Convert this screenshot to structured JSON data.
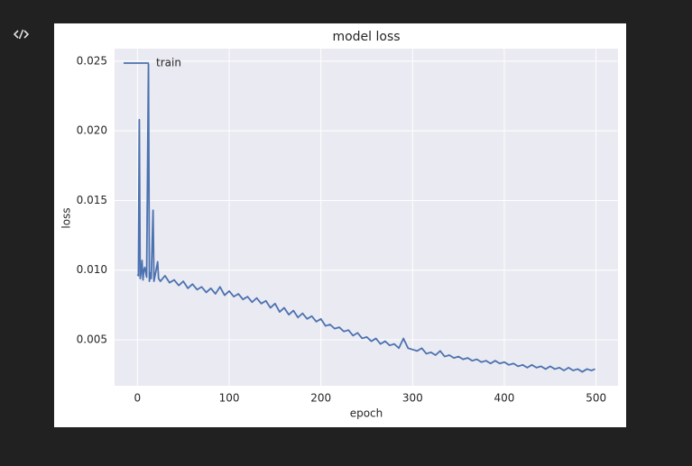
{
  "chart_data": {
    "type": "line",
    "title": "model loss",
    "x_label": "epoch",
    "y_label": "loss",
    "x": [
      0,
      1,
      2,
      3,
      4,
      5,
      6,
      7,
      8,
      10,
      12,
      13,
      14,
      15,
      17,
      18,
      20,
      22,
      23,
      25,
      30,
      35,
      40,
      45,
      50,
      55,
      60,
      65,
      70,
      75,
      80,
      85,
      90,
      95,
      100,
      105,
      110,
      115,
      120,
      125,
      130,
      135,
      140,
      145,
      150,
      155,
      160,
      165,
      170,
      175,
      180,
      185,
      190,
      195,
      200,
      205,
      210,
      215,
      220,
      225,
      230,
      235,
      240,
      245,
      250,
      255,
      260,
      265,
      270,
      275,
      280,
      285,
      290,
      295,
      300,
      305,
      310,
      315,
      320,
      325,
      330,
      335,
      340,
      345,
      350,
      355,
      360,
      365,
      370,
      375,
      380,
      385,
      390,
      395,
      400,
      405,
      410,
      415,
      420,
      425,
      430,
      435,
      440,
      445,
      450,
      455,
      460,
      465,
      470,
      475,
      480,
      485,
      490,
      495,
      499
    ],
    "series": [
      {
        "name": "train",
        "color": "#4c72b0",
        "values": [
          0.0097,
          0.0096,
          0.0208,
          0.0094,
          0.0099,
          0.0107,
          0.0093,
          0.01,
          0.0102,
          0.0095,
          0.0248,
          0.0092,
          0.0098,
          0.0094,
          0.0143,
          0.0092,
          0.0099,
          0.0106,
          0.0094,
          0.0092,
          0.0096,
          0.0091,
          0.0093,
          0.0089,
          0.0092,
          0.0087,
          0.009,
          0.0086,
          0.0088,
          0.0084,
          0.0087,
          0.0083,
          0.0088,
          0.0082,
          0.0085,
          0.0081,
          0.0083,
          0.0079,
          0.0081,
          0.0077,
          0.008,
          0.0076,
          0.0078,
          0.0073,
          0.0076,
          0.007,
          0.0073,
          0.0068,
          0.0071,
          0.0066,
          0.0069,
          0.0065,
          0.0067,
          0.0063,
          0.0065,
          0.006,
          0.0061,
          0.0058,
          0.0059,
          0.0056,
          0.0057,
          0.0053,
          0.0055,
          0.0051,
          0.0052,
          0.0049,
          0.0051,
          0.0047,
          0.0049,
          0.0046,
          0.0047,
          0.0044,
          0.0051,
          0.0044,
          0.0043,
          0.0042,
          0.0044,
          0.004,
          0.0041,
          0.0039,
          0.0042,
          0.0038,
          0.0039,
          0.0037,
          0.0038,
          0.0036,
          0.0037,
          0.0035,
          0.0036,
          0.0034,
          0.0035,
          0.0033,
          0.0035,
          0.0033,
          0.0034,
          0.0032,
          0.0033,
          0.0031,
          0.0032,
          0.003,
          0.0032,
          0.003,
          0.0031,
          0.0029,
          0.0031,
          0.0029,
          0.003,
          0.0028,
          0.003,
          0.0028,
          0.0029,
          0.0027,
          0.0029,
          0.0028,
          0.0029
        ]
      }
    ],
    "xlim": [
      -24.95,
      523.95
    ],
    "ylim": [
      0.0017,
      0.0259
    ],
    "xticks": [
      0,
      100,
      200,
      300,
      400,
      500
    ],
    "yticks": [
      0.005,
      {
        "value": 0.01,
        "label": "0.010"
      },
      0.015,
      {
        "value": 0.02,
        "label": "0.020"
      },
      0.025
    ],
    "grid": true,
    "legend": "upper left"
  }
}
